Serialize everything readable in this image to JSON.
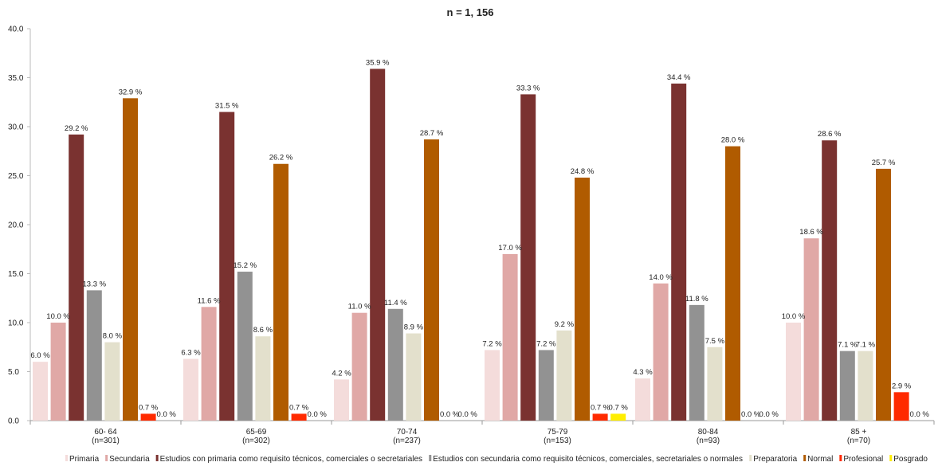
{
  "chart_data": {
    "type": "bar",
    "title": "n = 1, 156",
    "xlabel": "",
    "ylabel": "",
    "ylim": [
      0,
      40
    ],
    "yticks": [
      "0.0",
      "5.0",
      "10.0",
      "15.0",
      "20.0",
      "25.0",
      "30.0",
      "35.0",
      "40.0"
    ],
    "categories": [
      [
        "60- 64",
        "(n=301)"
      ],
      [
        "65-69",
        "(n=302)"
      ],
      [
        "70-74",
        "(n=237)"
      ],
      [
        "75-79",
        "(n=153)"
      ],
      [
        "80-84",
        "(n=93)"
      ],
      [
        "85 +",
        "(n=70)"
      ]
    ],
    "legend_position": "bottom",
    "grid": false,
    "series": [
      {
        "name": "Primaria",
        "color": "#f4dcdb",
        "values": [
          6.0,
          6.3,
          4.2,
          7.2,
          4.3,
          10.0
        ],
        "labels": [
          "6.0 %",
          "6.3 %",
          "4.2 %",
          "7.2 %",
          "4.3 %",
          "10.0 %"
        ]
      },
      {
        "name": "Secundaria",
        "color": "#e0a8a6",
        "values": [
          10.0,
          11.6,
          11.0,
          17.0,
          14.0,
          18.6
        ],
        "labels": [
          "10.0 %",
          "11.6 %",
          "11.0 %",
          "17.0 %",
          "14.0 %",
          "18.6 %"
        ]
      },
      {
        "name": "Estudios con primaria como requisito técnicos, comerciales o secretariales",
        "color": "#7a3230",
        "values": [
          29.2,
          31.5,
          35.9,
          33.3,
          34.4,
          28.6
        ],
        "labels": [
          "29.2 %",
          "31.5 %",
          "35.9 %",
          "33.3 %",
          "34.4 %",
          "28.6 %"
        ]
      },
      {
        "name": "Estudios con secundaria como requisito técnicos, comerciales, secretariales o normales",
        "color": "#929292",
        "values": [
          13.3,
          15.2,
          11.4,
          7.2,
          11.8,
          7.1
        ],
        "labels": [
          "13.3 %",
          "15.2 %",
          "11.4 %",
          "7.2 %",
          "11.8 %",
          "7.1 %"
        ]
      },
      {
        "name": "Preparatoria",
        "color": "#e3e0cc",
        "values": [
          8.0,
          8.6,
          8.9,
          9.2,
          7.5,
          7.1
        ],
        "labels": [
          "8.0 %",
          "8.6 %",
          "8.9 %",
          "9.2 %",
          "7.5 %",
          "7.1 %"
        ]
      },
      {
        "name": "Normal",
        "color": "#b05b00",
        "values": [
          32.9,
          26.2,
          28.7,
          24.8,
          28.0,
          25.7
        ],
        "labels": [
          "32.9 %",
          "26.2 %",
          "28.7 %",
          "24.8 %",
          "28.0 %",
          "25.7 %"
        ]
      },
      {
        "name": "Profesional",
        "color": "#ff2a00",
        "values": [
          0.7,
          0.7,
          0.0,
          0.7,
          0.0,
          2.9
        ],
        "labels": [
          "0.7 %",
          "0.7 %",
          "0.0 %",
          "0.7 %",
          "0.0 %",
          "2.9 %"
        ]
      },
      {
        "name": "Posgrado",
        "color": "#ffee00",
        "values": [
          0.0,
          0.0,
          0.0,
          0.7,
          0.0,
          0.0
        ],
        "labels": [
          "0.0 %",
          "0.0 %",
          "0.0 %",
          "0.7 %",
          "0.0 %",
          "0.0 %"
        ]
      }
    ]
  }
}
